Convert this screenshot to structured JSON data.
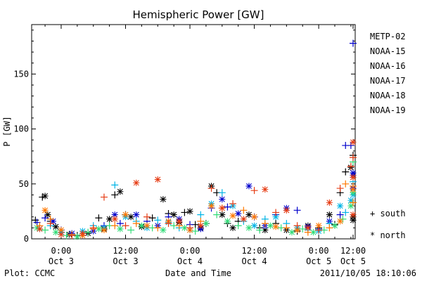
{
  "chart_data": {
    "type": "scatter",
    "title": "Hemispheric Power [GW]",
    "xlabel": "Date and Time",
    "ylabel": "P [GW]",
    "ylim": [
      0,
      195
    ],
    "xlim": [
      -5.5,
      54.8
    ],
    "x_unit": "hours since Oct 3 00:00",
    "xticks": [
      {
        "x": 0,
        "time": "0:00",
        "date": "Oct 3"
      },
      {
        "x": 12,
        "time": "12:00",
        "date": "Oct 3"
      },
      {
        "x": 24,
        "time": "0:00",
        "date": "Oct 4"
      },
      {
        "x": 36,
        "time": "12:00",
        "date": "Oct 4"
      },
      {
        "x": 48,
        "time": "0:00",
        "date": "Oct 5"
      },
      {
        "x": 60,
        "time": "12:00",
        "date": "Oct 5"
      }
    ],
    "yticks": [
      0,
      50,
      100,
      150
    ],
    "grid": false,
    "legend_position": "right",
    "markers": {
      "south": "+",
      "north": "*"
    },
    "marker_legend": [
      {
        "symbol": "+",
        "label": "south"
      },
      {
        "symbol": "*",
        "label": "north"
      }
    ],
    "series": [
      {
        "name": "METP-02",
        "color": "#000000",
        "points": [
          [
            -4.8,
            17,
            "s"
          ],
          [
            -3.5,
            38,
            "s"
          ],
          [
            -3.0,
            39,
            "n"
          ],
          [
            -2.5,
            22,
            "n"
          ],
          [
            -2,
            16,
            "s"
          ],
          [
            -1,
            11,
            "n"
          ],
          [
            0,
            6,
            "s"
          ],
          [
            1.5,
            4,
            "n"
          ],
          [
            3,
            3,
            "s"
          ],
          [
            5,
            5,
            "n"
          ],
          [
            7,
            19,
            "s"
          ],
          [
            8,
            9,
            "n"
          ],
          [
            9,
            18,
            "n"
          ],
          [
            10,
            40,
            "s"
          ],
          [
            11,
            43,
            "n"
          ],
          [
            12,
            22,
            "s"
          ],
          [
            13,
            20,
            "n"
          ],
          [
            15,
            11,
            "n"
          ],
          [
            17,
            19,
            "s"
          ],
          [
            19,
            36,
            "n"
          ],
          [
            20,
            23,
            "s"
          ],
          [
            21,
            22,
            "n"
          ],
          [
            22,
            15,
            "n"
          ],
          [
            23,
            24,
            "s"
          ],
          [
            24,
            25,
            "n"
          ],
          [
            25,
            13,
            "s"
          ],
          [
            26,
            10,
            "n"
          ],
          [
            27,
            14,
            "s"
          ],
          [
            28,
            48,
            "n"
          ],
          [
            29,
            42,
            "s"
          ],
          [
            30,
            22,
            "n"
          ],
          [
            31,
            14,
            "s"
          ],
          [
            32,
            10,
            "n"
          ],
          [
            33,
            16,
            "s"
          ],
          [
            35,
            22,
            "n"
          ],
          [
            37,
            10,
            "s"
          ],
          [
            38,
            8,
            "n"
          ],
          [
            40,
            14,
            "s"
          ],
          [
            42,
            8,
            "n"
          ],
          [
            44,
            7,
            "s"
          ],
          [
            46,
            12,
            "n"
          ],
          [
            48,
            10,
            "s"
          ],
          [
            50,
            22,
            "n"
          ],
          [
            51,
            13,
            "s"
          ],
          [
            52,
            42,
            "s"
          ],
          [
            53,
            61,
            "s"
          ],
          [
            54,
            65,
            "n"
          ],
          [
            55,
            76,
            "s"
          ],
          [
            56,
            20,
            "n"
          ],
          [
            56.5,
            17,
            "n"
          ]
        ]
      },
      {
        "name": "NOAA-15",
        "color": "#0000cc",
        "points": [
          [
            -4.5,
            15,
            "s"
          ],
          [
            -3,
            19,
            "s"
          ],
          [
            -1.5,
            16,
            "n"
          ],
          [
            0,
            8,
            "s"
          ],
          [
            2,
            5,
            "n"
          ],
          [
            4,
            3,
            "s"
          ],
          [
            6,
            7,
            "n"
          ],
          [
            8,
            12,
            "s"
          ],
          [
            10,
            22,
            "n"
          ],
          [
            11,
            14,
            "s"
          ],
          [
            14,
            22,
            "n"
          ],
          [
            16,
            16,
            "s"
          ],
          [
            18,
            12,
            "n"
          ],
          [
            20,
            20,
            "s"
          ],
          [
            22,
            18,
            "n"
          ],
          [
            24,
            13,
            "s"
          ],
          [
            26,
            9,
            "n"
          ],
          [
            28,
            28,
            "s"
          ],
          [
            30,
            36,
            "n"
          ],
          [
            31,
            29,
            "s"
          ],
          [
            33,
            23,
            "n"
          ],
          [
            35,
            48,
            "n"
          ],
          [
            36,
            20,
            "s"
          ],
          [
            38,
            12,
            "n"
          ],
          [
            40,
            22,
            "s"
          ],
          [
            42,
            28,
            "n"
          ],
          [
            44,
            26,
            "s"
          ],
          [
            46,
            11,
            "n"
          ],
          [
            48,
            9,
            "s"
          ],
          [
            50,
            16,
            "n"
          ],
          [
            52,
            22,
            "s"
          ],
          [
            53,
            85,
            "s"
          ],
          [
            54,
            85,
            "s"
          ],
          [
            55,
            46,
            "n"
          ],
          [
            56,
            58,
            "n"
          ],
          [
            57,
            178,
            "s"
          ],
          [
            57.5,
            60,
            "n"
          ]
        ]
      },
      {
        "name": "NOAA-16",
        "color": "#00b4e6",
        "points": [
          [
            -4,
            9,
            "n"
          ],
          [
            -2,
            12,
            "s"
          ],
          [
            0,
            6,
            "n"
          ],
          [
            2,
            4,
            "s"
          ],
          [
            4,
            7,
            "n"
          ],
          [
            6,
            12,
            "s"
          ],
          [
            8,
            10,
            "n"
          ],
          [
            10,
            49,
            "s"
          ],
          [
            12,
            20,
            "n"
          ],
          [
            14,
            16,
            "s"
          ],
          [
            16,
            10,
            "n"
          ],
          [
            18,
            17,
            "s"
          ],
          [
            20,
            15,
            "n"
          ],
          [
            22,
            10,
            "s"
          ],
          [
            24,
            8,
            "n"
          ],
          [
            26,
            22,
            "s"
          ],
          [
            28,
            32,
            "n"
          ],
          [
            30,
            42,
            "s"
          ],
          [
            32,
            30,
            "n"
          ],
          [
            34,
            16,
            "s"
          ],
          [
            36,
            12,
            "n"
          ],
          [
            38,
            18,
            "s"
          ],
          [
            40,
            20,
            "n"
          ],
          [
            42,
            14,
            "s"
          ],
          [
            44,
            10,
            "n"
          ],
          [
            46,
            8,
            "s"
          ],
          [
            48,
            7,
            "n"
          ],
          [
            50,
            14,
            "s"
          ],
          [
            52,
            30,
            "n"
          ],
          [
            53,
            24,
            "s"
          ],
          [
            54,
            35,
            "n"
          ],
          [
            55,
            52,
            "s"
          ],
          [
            56,
            40,
            "n"
          ]
        ]
      },
      {
        "name": "NOAA-17",
        "color": "#32dc78",
        "points": [
          [
            -4.5,
            10,
            "n"
          ],
          [
            -3,
            8,
            "s"
          ],
          [
            -1,
            6,
            "n"
          ],
          [
            1,
            3,
            "s"
          ],
          [
            3,
            2,
            "n"
          ],
          [
            5,
            6,
            "s"
          ],
          [
            7,
            9,
            "n"
          ],
          [
            9,
            12,
            "s"
          ],
          [
            11,
            9,
            "n"
          ],
          [
            13,
            8,
            "s"
          ],
          [
            15,
            12,
            "n"
          ],
          [
            17,
            10,
            "s"
          ],
          [
            19,
            8,
            "n"
          ],
          [
            21,
            12,
            "s"
          ],
          [
            23,
            10,
            "n"
          ],
          [
            25,
            7,
            "s"
          ],
          [
            27,
            14,
            "n"
          ],
          [
            29,
            22,
            "s"
          ],
          [
            31,
            16,
            "n"
          ],
          [
            33,
            12,
            "s"
          ],
          [
            35,
            10,
            "n"
          ],
          [
            37,
            8,
            "s"
          ],
          [
            39,
            12,
            "n"
          ],
          [
            41,
            10,
            "s"
          ],
          [
            43,
            6,
            "n"
          ],
          [
            45,
            9,
            "s"
          ],
          [
            47,
            6,
            "n"
          ],
          [
            49,
            8,
            "s"
          ],
          [
            51,
            12,
            "n"
          ],
          [
            52.5,
            18,
            "s"
          ],
          [
            54,
            30,
            "n"
          ],
          [
            55,
            33,
            "s"
          ],
          [
            56,
            70,
            "s"
          ],
          [
            57,
            42,
            "n"
          ],
          [
            58,
            33,
            "s"
          ]
        ]
      },
      {
        "name": "NOAA-18",
        "color": "#ff7800",
        "points": [
          [
            -4,
            12,
            "s"
          ],
          [
            -3,
            26,
            "n"
          ],
          [
            -2,
            18,
            "s"
          ],
          [
            0,
            8,
            "n"
          ],
          [
            2,
            4,
            "s"
          ],
          [
            4,
            3,
            "n"
          ],
          [
            6,
            9,
            "s"
          ],
          [
            8,
            8,
            "n"
          ],
          [
            10,
            12,
            "s"
          ],
          [
            12,
            22,
            "n"
          ],
          [
            14,
            14,
            "s"
          ],
          [
            16,
            12,
            "n"
          ],
          [
            18,
            10,
            "s"
          ],
          [
            20,
            16,
            "n"
          ],
          [
            22,
            12,
            "s"
          ],
          [
            24,
            8,
            "n"
          ],
          [
            26,
            16,
            "s"
          ],
          [
            28,
            30,
            "n"
          ],
          [
            30,
            28,
            "s"
          ],
          [
            32,
            21,
            "n"
          ],
          [
            34,
            26,
            "s"
          ],
          [
            36,
            20,
            "n"
          ],
          [
            38,
            14,
            "s"
          ],
          [
            40,
            11,
            "n"
          ],
          [
            42,
            10,
            "s"
          ],
          [
            44,
            8,
            "n"
          ],
          [
            46,
            6,
            "s"
          ],
          [
            48,
            12,
            "n"
          ],
          [
            50,
            10,
            "s"
          ],
          [
            52,
            16,
            "n"
          ],
          [
            53,
            50,
            "s"
          ],
          [
            55,
            45,
            "n"
          ],
          [
            56,
            33,
            "s"
          ],
          [
            57,
            56,
            "n"
          ],
          [
            58,
            48,
            "s"
          ]
        ]
      },
      {
        "name": "NOAA-19",
        "color": "#e63c14",
        "points": [
          [
            -4,
            9,
            "n"
          ],
          [
            -2,
            14,
            "s"
          ],
          [
            0,
            4,
            "n"
          ],
          [
            2,
            3,
            "s"
          ],
          [
            4,
            5,
            "n"
          ],
          [
            6,
            10,
            "s"
          ],
          [
            8,
            38,
            "s"
          ],
          [
            10,
            18,
            "n"
          ],
          [
            12,
            12,
            "s"
          ],
          [
            14,
            51,
            "n"
          ],
          [
            16,
            20,
            "s"
          ],
          [
            18,
            54,
            "n"
          ],
          [
            20,
            14,
            "s"
          ],
          [
            22,
            16,
            "n"
          ],
          [
            24,
            10,
            "s"
          ],
          [
            26,
            12,
            "n"
          ],
          [
            28,
            46,
            "s"
          ],
          [
            30,
            28,
            "n"
          ],
          [
            32,
            32,
            "s"
          ],
          [
            34,
            18,
            "n"
          ],
          [
            36,
            44,
            "s"
          ],
          [
            38,
            45,
            "n"
          ],
          [
            40,
            24,
            "s"
          ],
          [
            42,
            26,
            "n"
          ],
          [
            44,
            12,
            "s"
          ],
          [
            46,
            10,
            "n"
          ],
          [
            48,
            8,
            "s"
          ],
          [
            50,
            33,
            "n"
          ],
          [
            52,
            46,
            "s"
          ],
          [
            54,
            66,
            "s"
          ],
          [
            55,
            88,
            "n"
          ],
          [
            56,
            56,
            "n"
          ],
          [
            57,
            74,
            "s"
          ],
          [
            58,
            22,
            "n"
          ]
        ]
      }
    ]
  },
  "footer": {
    "plot_label": "Plot: CCMC",
    "timestamp": "2011/10/05 18:10:06"
  }
}
